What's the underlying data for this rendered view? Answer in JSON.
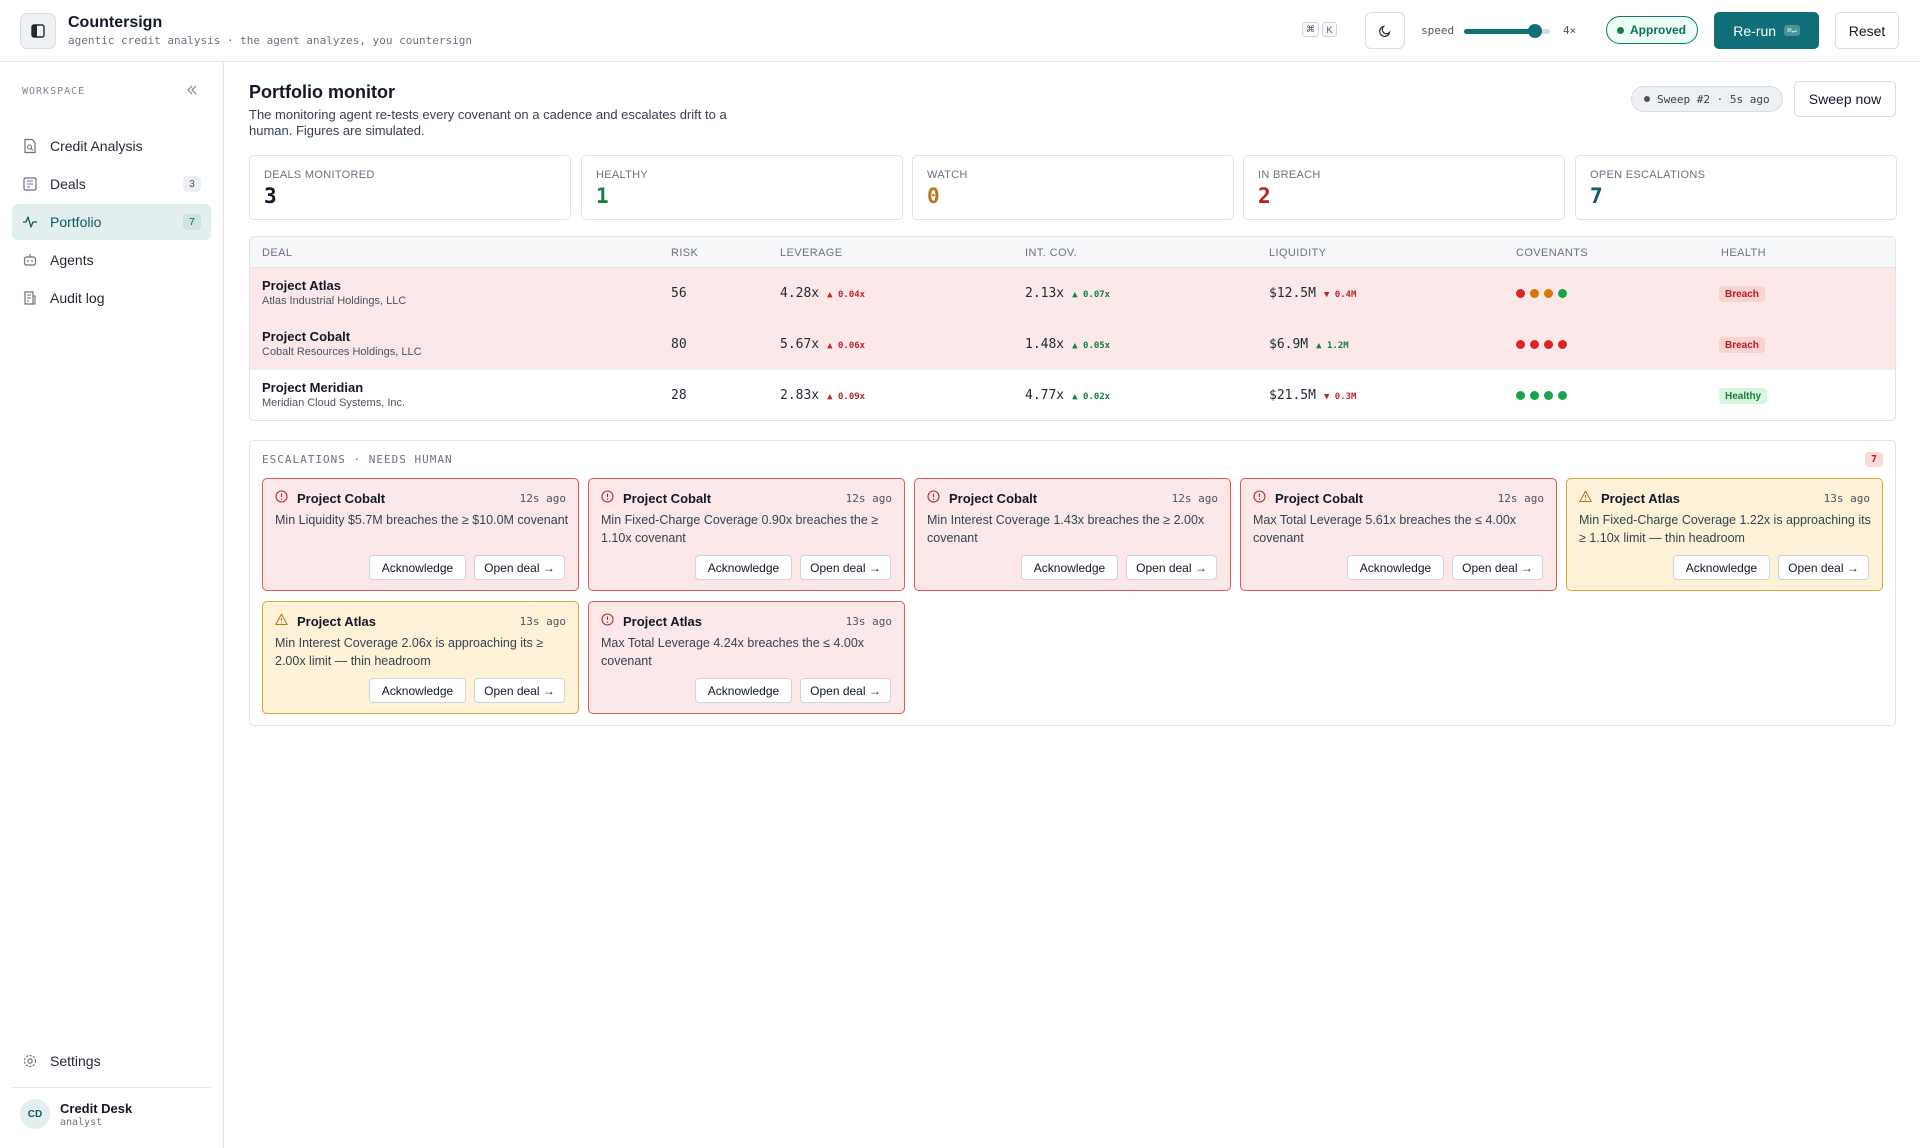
{
  "header": {
    "app_title": "Countersign",
    "app_subtitle": "agentic credit analysis · the agent analyzes, you countersign",
    "kbd_keys": [
      "⌘",
      "K"
    ],
    "speed_label": "speed",
    "speed_value_label": "4×",
    "speed_level": 0.82,
    "status": "Approved",
    "rerun_label": "Re-run",
    "rerun_kbd": "⌘↵",
    "reset_label": "Reset"
  },
  "sidebar": {
    "section_label": "WORKSPACE",
    "items": [
      {
        "label": "Credit Analysis",
        "badge": "",
        "active": false,
        "icon": "document-search-icon"
      },
      {
        "label": "Deals",
        "badge": "3",
        "active": false,
        "icon": "deals-icon"
      },
      {
        "label": "Portfolio",
        "badge": "7",
        "active": true,
        "icon": "activity-icon"
      },
      {
        "label": "Agents",
        "badge": "",
        "active": false,
        "icon": "robot-icon"
      },
      {
        "label": "Audit log",
        "badge": "",
        "active": false,
        "icon": "audit-log-icon"
      }
    ],
    "settings_label": "Settings",
    "user": {
      "initials": "CD",
      "name": "Credit Desk",
      "role": "analyst"
    }
  },
  "main": {
    "title": "Portfolio monitor",
    "description": "The monitoring agent re-tests every covenant on a cadence and escalates drift to a human. Figures are simulated.",
    "sweep_status": "Sweep #2 · 5s ago",
    "sweep_button": "Sweep now",
    "stats": [
      {
        "label": "DEALS MONITORED",
        "value": "3",
        "color": "#111827"
      },
      {
        "label": "HEALTHY",
        "value": "1",
        "color": "#15803d"
      },
      {
        "label": "WATCH",
        "value": "0",
        "color": "#b7791f"
      },
      {
        "label": "IN BREACH",
        "value": "2",
        "color": "#b91c1c"
      },
      {
        "label": "OPEN ESCALATIONS",
        "value": "7",
        "color": "#0f5a60"
      }
    ],
    "table": {
      "headers": [
        "DEAL",
        "RISK",
        "LEVERAGE",
        "INT. COV.",
        "LIQUIDITY",
        "COVENANTS",
        "HEALTH"
      ],
      "rows": [
        {
          "deal": "Project Atlas",
          "entity": "Atlas Industrial Holdings, LLC",
          "risk": "56",
          "leverage": "4.28x",
          "leverage_delta": "▲ 0.04x",
          "leverage_delta_color": "red",
          "int_cov": "2.13x",
          "int_cov_delta": "▲ 0.07x",
          "int_cov_delta_color": "green",
          "liquidity": "$12.5M",
          "liquidity_delta": "▼ 0.4M",
          "liquidity_delta_color": "red",
          "covenants": [
            "#dc2626",
            "#d97706",
            "#d97706",
            "#16a34a"
          ],
          "health": "Breach",
          "status": "breach"
        },
        {
          "deal": "Project Cobalt",
          "entity": "Cobalt Resources Holdings, LLC",
          "risk": "80",
          "leverage": "5.67x",
          "leverage_delta": "▲ 0.06x",
          "leverage_delta_color": "red",
          "int_cov": "1.48x",
          "int_cov_delta": "▲ 0.05x",
          "int_cov_delta_color": "green",
          "liquidity": "$6.9M",
          "liquidity_delta": "▲ 1.2M",
          "liquidity_delta_color": "green",
          "covenants": [
            "#dc2626",
            "#dc2626",
            "#dc2626",
            "#dc2626"
          ],
          "health": "Breach",
          "status": "breach"
        },
        {
          "deal": "Project Meridian",
          "entity": "Meridian Cloud Systems, Inc.",
          "risk": "28",
          "leverage": "2.83x",
          "leverage_delta": "▲ 0.09x",
          "leverage_delta_color": "red",
          "int_cov": "4.77x",
          "int_cov_delta": "▲ 0.02x",
          "int_cov_delta_color": "green",
          "liquidity": "$21.5M",
          "liquidity_delta": "▼ 0.3M",
          "liquidity_delta_color": "red",
          "covenants": [
            "#16a34a",
            "#16a34a",
            "#16a34a",
            "#16a34a"
          ],
          "health": "Healthy",
          "status": "healthy"
        }
      ]
    },
    "escalations": {
      "title": "ESCALATIONS · NEEDS HUMAN",
      "count": "7",
      "ack_label": "Acknowledge",
      "open_label": "Open deal →",
      "cards": [
        {
          "deal": "Project Cobalt",
          "time": "12s ago",
          "severity": "breach",
          "icon": "alert-circle-icon",
          "message": "Min Liquidity $5.7M breaches the ≥ $10.0M covenant"
        },
        {
          "deal": "Project Cobalt",
          "time": "12s ago",
          "severity": "breach",
          "icon": "alert-circle-icon",
          "message": "Min Fixed-Charge Coverage 0.90x breaches the ≥ 1.10x covenant"
        },
        {
          "deal": "Project Cobalt",
          "time": "12s ago",
          "severity": "breach",
          "icon": "alert-circle-icon",
          "message": "Min Interest Coverage 1.43x breaches the ≥ 2.00x covenant"
        },
        {
          "deal": "Project Cobalt",
          "time": "12s ago",
          "severity": "breach",
          "icon": "alert-circle-icon",
          "message": "Max Total Leverage 5.61x breaches the ≤ 4.00x covenant"
        },
        {
          "deal": "Project Atlas",
          "time": "13s ago",
          "severity": "watch",
          "icon": "warning-triangle-icon",
          "message": "Min Fixed-Charge Coverage 1.22x is approaching its ≥ 1.10x limit — thin headroom"
        },
        {
          "deal": "Project Atlas",
          "time": "13s ago",
          "severity": "watch",
          "icon": "warning-triangle-icon",
          "message": "Min Interest Coverage 2.06x is approaching its ≥ 2.00x limit — thin headroom"
        },
        {
          "deal": "Project Atlas",
          "time": "13s ago",
          "severity": "breach",
          "icon": "alert-circle-icon",
          "message": "Max Total Leverage 4.24x breaches the ≤ 4.00x covenant"
        }
      ]
    }
  }
}
